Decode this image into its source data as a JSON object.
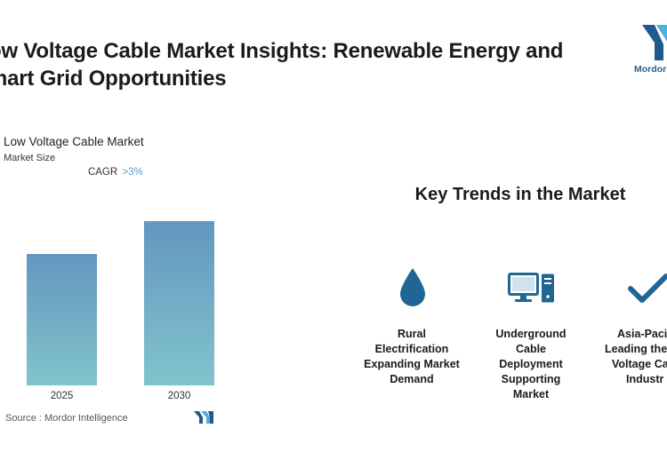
{
  "header": {
    "title": "ow Voltage Cable Market Insights: Renewable Energy and mart Grid Opportunities",
    "brand": "Mordor"
  },
  "chart": {
    "title": "Low Voltage Cable Market",
    "subtitle": "Market Size",
    "cagr_label": "CAGR",
    "cagr_value": ">3%",
    "source": "Source :  Mordor Intelligence"
  },
  "chart_data": {
    "type": "bar",
    "categories": [
      "2025",
      "2030"
    ],
    "values": [
      0.8,
      1.0
    ],
    "title": "Low Voltage Cable Market",
    "ylabel": "Market Size",
    "annotations": [
      "CAGR >3%"
    ],
    "grid": false,
    "legend": "none"
  },
  "trends": {
    "title": "Key Trends in the Market",
    "items": [
      {
        "icon": "water-drop-icon",
        "label_lines": [
          "Rural",
          "Electrification",
          "Expanding Market",
          "Demand"
        ]
      },
      {
        "icon": "computer-icon",
        "label_lines": [
          "Underground",
          "Cable",
          "Deployment",
          "Supporting",
          "Market"
        ]
      },
      {
        "icon": "checkmark-icon",
        "label_lines": [
          "Asia-Paci",
          "Leading the",
          "Voltage Ca",
          "Industr"
        ]
      }
    ]
  },
  "colors": {
    "bar_top": "#6496bf",
    "bar_bottom": "#80c4cc",
    "icon": "#1f6694",
    "brand": "#2d5f8f"
  }
}
